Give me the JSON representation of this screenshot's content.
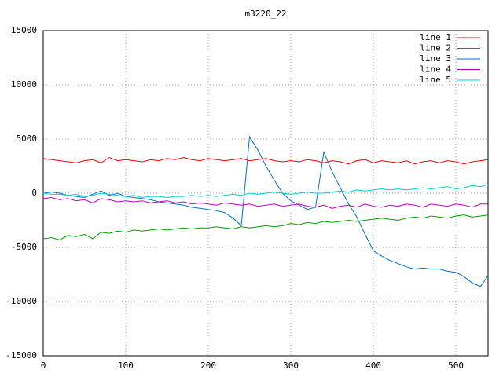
{
  "chart_data": {
    "type": "line",
    "title": "m3220_22",
    "x": [
      0,
      10,
      20,
      30,
      40,
      50,
      60,
      70,
      80,
      90,
      100,
      110,
      120,
      130,
      140,
      150,
      160,
      170,
      180,
      190,
      200,
      210,
      220,
      230,
      240,
      250,
      260,
      270,
      280,
      290,
      300,
      310,
      320,
      330,
      340,
      350,
      360,
      370,
      380,
      390,
      400,
      410,
      420,
      430,
      440,
      450,
      460,
      470,
      480,
      490,
      500,
      510,
      520,
      530,
      539
    ],
    "xlim": [
      0,
      539
    ],
    "ylim": [
      -15000,
      15000
    ],
    "xticks": [
      0,
      100,
      200,
      300,
      400,
      500
    ],
    "yticks": [
      -15000,
      -10000,
      -5000,
      0,
      5000,
      10000,
      15000
    ],
    "grid": true,
    "legend": "top-right",
    "series": [
      {
        "name": "line 1",
        "color": "#ff0000",
        "values": [
          3200,
          3100,
          3000,
          2900,
          2800,
          3000,
          3100,
          2800,
          3300,
          3000,
          3100,
          3000,
          2900,
          3100,
          3000,
          3200,
          3100,
          3300,
          3100,
          3000,
          3200,
          3100,
          3000,
          3100,
          3200,
          3000,
          3100,
          3200,
          3000,
          2900,
          3000,
          2900,
          3100,
          3000,
          2800,
          3000,
          2900,
          2700,
          3000,
          3100,
          2800,
          3000,
          2900,
          2800,
          3000,
          2700,
          2900,
          3000,
          2800,
          3000,
          2900,
          2700,
          2900,
          3000,
          3100
        ]
      },
      {
        "name": "line 2",
        "color": "#00a000",
        "values": [
          -4200,
          -4100,
          -4300,
          -3900,
          -4000,
          -3800,
          -4200,
          -3600,
          -3700,
          -3500,
          -3600,
          -3400,
          -3500,
          -3400,
          -3300,
          -3400,
          -3300,
          -3200,
          -3300,
          -3200,
          -3200,
          -3100,
          -3200,
          -3300,
          -3100,
          -3200,
          -3100,
          -3000,
          -3100,
          -3000,
          -2800,
          -2900,
          -2700,
          -2800,
          -2600,
          -2700,
          -2600,
          -2500,
          -2600,
          -2500,
          -2400,
          -2300,
          -2400,
          -2500,
          -2300,
          -2200,
          -2300,
          -2100,
          -2200,
          -2300,
          -2100,
          -2000,
          -2200,
          -2100,
          -2000
        ]
      },
      {
        "name": "line 3",
        "color": "#0070d0",
        "values": [
          0,
          100,
          0,
          -200,
          -300,
          -400,
          -100,
          200,
          -200,
          0,
          -300,
          -400,
          -500,
          -600,
          -800,
          -900,
          -1000,
          -1100,
          -1300,
          -1400,
          -1500,
          -1600,
          -1800,
          -2300,
          -3000,
          5200,
          4000,
          2500,
          1200,
          0,
          -700,
          -1100,
          -1500,
          -1300,
          3800,
          2000,
          500,
          -1000,
          -2200,
          -3800,
          -5300,
          -5800,
          -6200,
          -6500,
          -6800,
          -7000,
          -6900,
          -7000,
          -7000,
          -7200,
          -7300,
          -7700,
          -8300,
          -8600,
          -7600
        ]
      },
      {
        "name": "line 4",
        "color": "#c000c0",
        "values": [
          -500,
          -400,
          -600,
          -500,
          -700,
          -600,
          -900,
          -500,
          -600,
          -800,
          -700,
          -800,
          -700,
          -900,
          -800,
          -700,
          -900,
          -800,
          -1000,
          -900,
          -1000,
          -1100,
          -900,
          -1000,
          -1100,
          -1000,
          -1200,
          -1100,
          -1000,
          -1200,
          -1100,
          -1000,
          -1200,
          -1300,
          -1100,
          -1400,
          -1200,
          -1100,
          -1300,
          -1000,
          -1200,
          -1300,
          -1100,
          -1200,
          -1000,
          -1100,
          -1300,
          -1000,
          -1100,
          -1200,
          -1000,
          -1100,
          -1300,
          -1000,
          -1000
        ]
      },
      {
        "name": "line 5",
        "color": "#00d0d0",
        "values": [
          0,
          -100,
          -100,
          -200,
          -100,
          -300,
          -200,
          0,
          -100,
          -200,
          -300,
          -200,
          -400,
          -300,
          -300,
          -400,
          -300,
          -300,
          -200,
          -300,
          -200,
          -300,
          -200,
          -100,
          -200,
          0,
          -100,
          0,
          100,
          0,
          -100,
          0,
          100,
          0,
          0,
          100,
          200,
          100,
          300,
          200,
          300,
          400,
          300,
          400,
          300,
          400,
          500,
          400,
          500,
          600,
          400,
          500,
          700,
          600,
          800
        ]
      }
    ]
  }
}
